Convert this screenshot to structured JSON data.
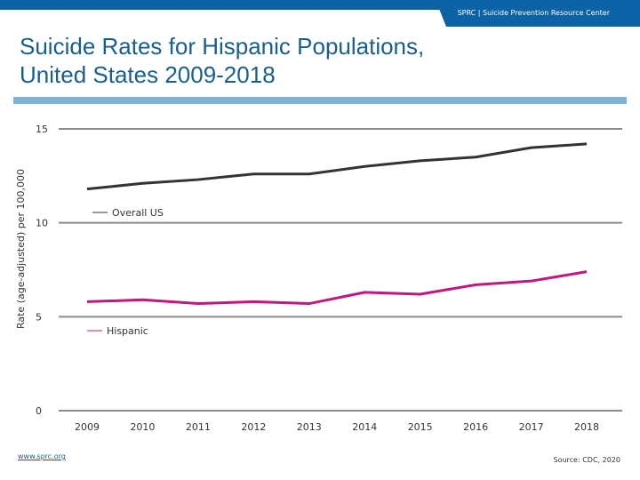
{
  "header": {
    "org": "SPRC  |  Suicide Prevention Resource Center",
    "brand_color": "#0b62a4"
  },
  "footer": {
    "link": "www.sprc.org",
    "source": "Source: CDC, 2020"
  },
  "chart_data": {
    "type": "line",
    "title": "Suicide Rates for Hispanic Populations, United States 2009-2018",
    "title_lines": [
      "Suicide Rates for Hispanic Populations,",
      "United States 2009-2018"
    ],
    "ylabel": "Rate (age-adjusted) per 100,000",
    "xlabel": "",
    "ylim": [
      0,
      15
    ],
    "yticks": [
      0,
      5,
      10,
      15
    ],
    "grid": true,
    "x": [
      "2009",
      "2010",
      "2011",
      "2012",
      "2013",
      "2014",
      "2015",
      "2016",
      "2017",
      "2018"
    ],
    "series": [
      {
        "name": "Overall US",
        "color": "#333333",
        "values": [
          11.8,
          12.1,
          12.3,
          12.6,
          12.6,
          13.0,
          13.3,
          13.5,
          14.0,
          14.2
        ]
      },
      {
        "name": "Hispanic",
        "color": "#c0187f",
        "values": [
          5.8,
          5.9,
          5.7,
          5.8,
          5.7,
          6.3,
          6.2,
          6.7,
          6.9,
          7.4
        ]
      }
    ],
    "legend": "inline-labels"
  }
}
